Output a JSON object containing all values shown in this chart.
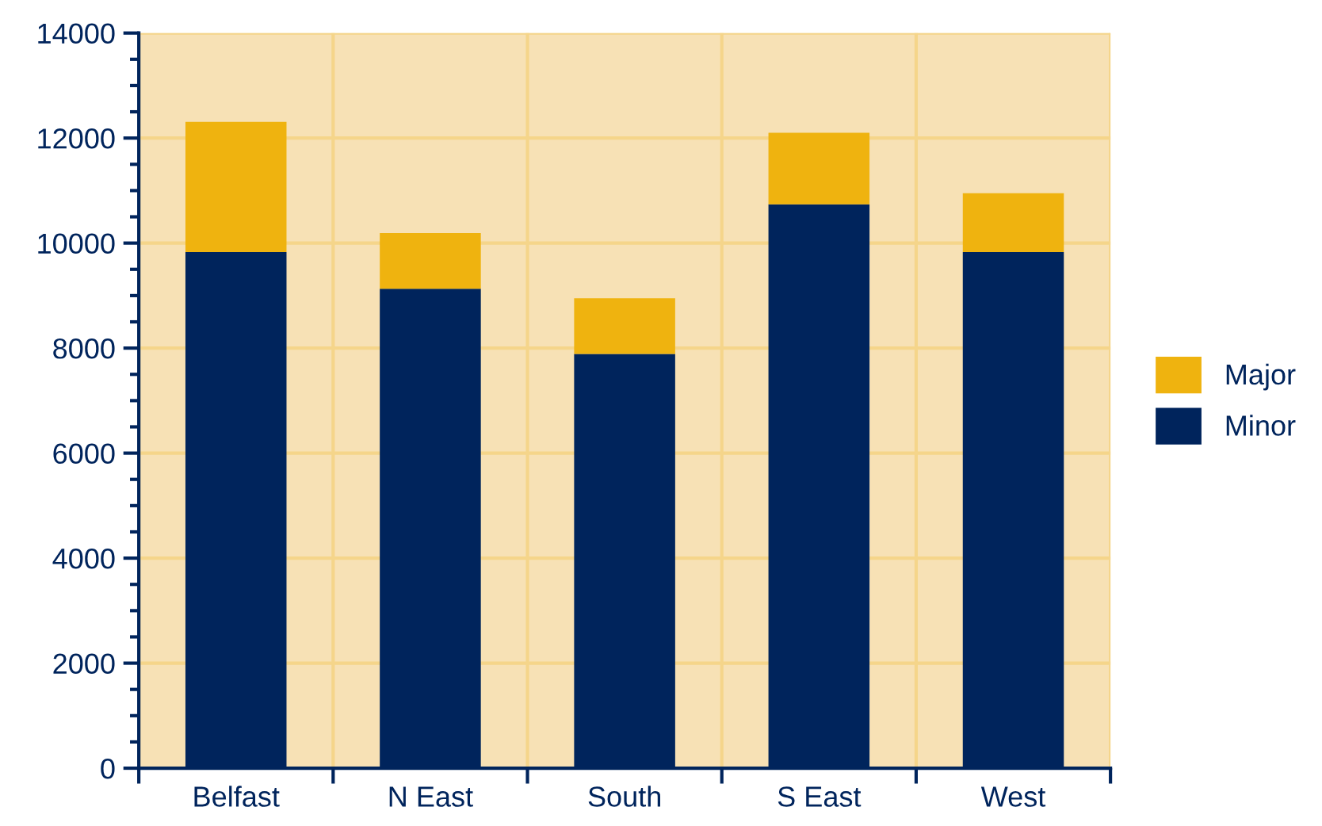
{
  "chart_data": {
    "type": "bar",
    "stacked": true,
    "categories": [
      "Belfast",
      "N East",
      "South",
      "S East",
      "West"
    ],
    "series": [
      {
        "name": "Minor",
        "color": "#00245c",
        "values": [
          9830,
          9130,
          7890,
          10740,
          9830
        ]
      },
      {
        "name": "Major",
        "color": "#efb30f",
        "values": [
          2480,
          1060,
          1060,
          1360,
          1120
        ]
      }
    ],
    "ylim": [
      0,
      14000
    ],
    "yticks": [
      0,
      2000,
      4000,
      6000,
      8000,
      10000,
      12000,
      14000
    ],
    "grid": true,
    "legend": "right"
  }
}
